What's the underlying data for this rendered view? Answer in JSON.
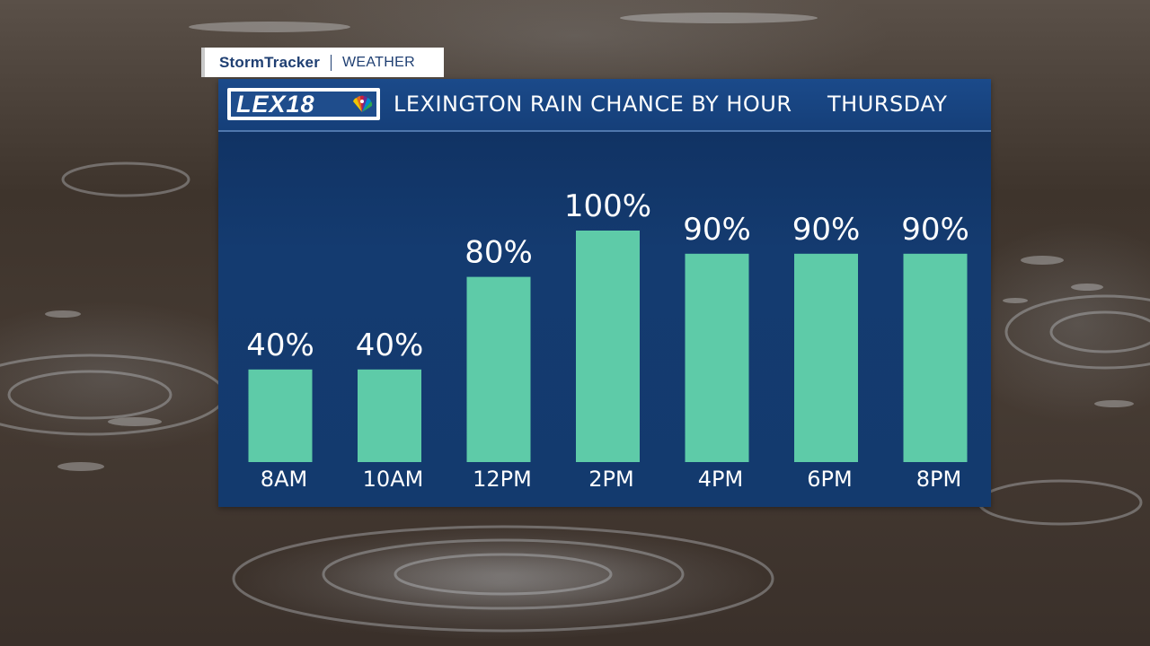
{
  "badge": {
    "brand": "StormTracker",
    "section": "WEATHER"
  },
  "logo": {
    "text": "LEX18",
    "icon": "nbc-peacock-icon"
  },
  "header": {
    "title": "LEXINGTON RAIN CHANCE BY HOUR",
    "day": "THURSDAY"
  },
  "colors": {
    "bar": "#5ecba8",
    "panel": "#143b70",
    "header": "#1b4a8a",
    "text": "#ffffff",
    "badge_text": "#1f3f72"
  },
  "chart_data": {
    "type": "bar",
    "title": "LEXINGTON RAIN CHANCE BY HOUR",
    "categories": [
      "8AM",
      "10AM",
      "12PM",
      "2PM",
      "4PM",
      "6PM",
      "8PM"
    ],
    "values": [
      40,
      40,
      80,
      100,
      90,
      90,
      90
    ],
    "value_labels": [
      "40%",
      "40%",
      "80%",
      "100%",
      "90%",
      "90%",
      "90%"
    ],
    "unit": "%",
    "ylim": [
      0,
      100
    ],
    "grid": false,
    "legend": "none"
  }
}
